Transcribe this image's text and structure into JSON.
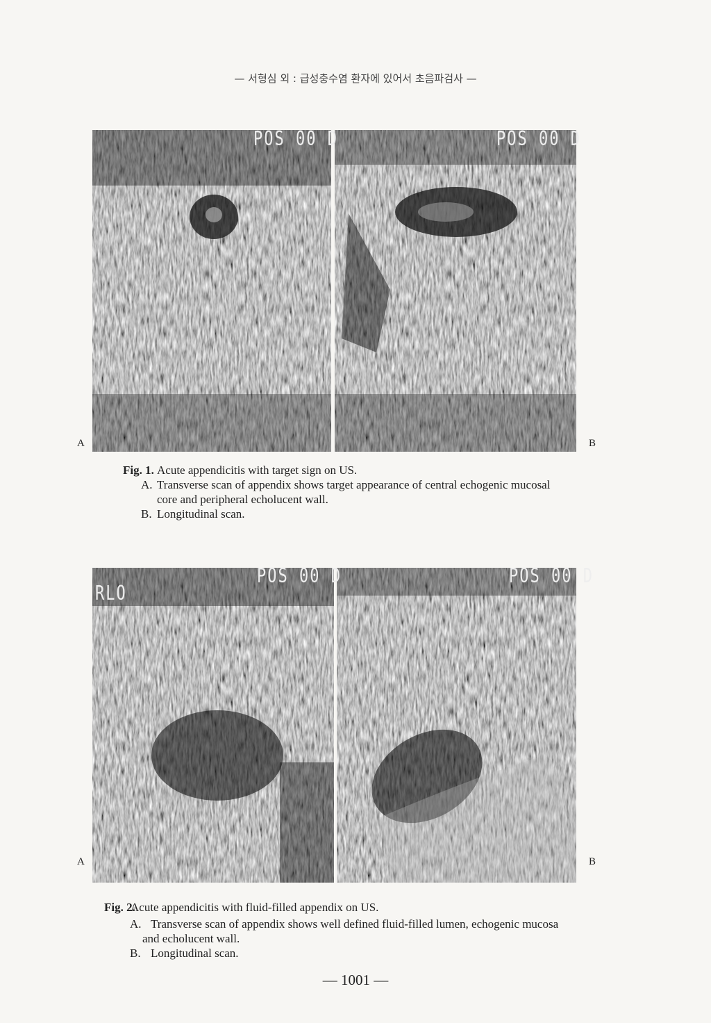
{
  "header": "— 서형심 외 : 급성충수염 환자에 있어서 초음파검사 —",
  "figures": [
    {
      "images": [
        {
          "label": "A",
          "overlay": [
            "POS 00 D"
          ]
        },
        {
          "label": "B",
          "overlay": [
            "POS 00 D"
          ]
        }
      ],
      "caption": {
        "figure_label": "Fig. 1.",
        "title": "Acute appendicitis with target sign on US.",
        "items": [
          {
            "label": "A.",
            "lines": [
              "Transverse scan of appendix shows target appearance of central echogenic mucosal",
              "core and peripheral echolucent wall."
            ]
          },
          {
            "label": "B.",
            "lines": [
              "Longitudinal scan."
            ]
          }
        ]
      }
    },
    {
      "images": [
        {
          "label": "A",
          "overlay": [
            "POS 00 D",
            "RLO"
          ]
        },
        {
          "label": "B",
          "overlay": [
            "POS 00 D"
          ]
        }
      ],
      "caption": {
        "figure_label": "Fig. 2.",
        "title": "Acute appendicitis with fluid-filled appendix on US.",
        "items": [
          {
            "label": "A.",
            "lines": [
              "Transverse scan of appendix shows well defined fluid-filled lumen, echogenic mucosa",
              "and echolucent wall."
            ]
          },
          {
            "label": "B.",
            "lines": [
              "Longitudinal scan."
            ]
          }
        ]
      }
    }
  ],
  "page_number": "— 1001 —"
}
